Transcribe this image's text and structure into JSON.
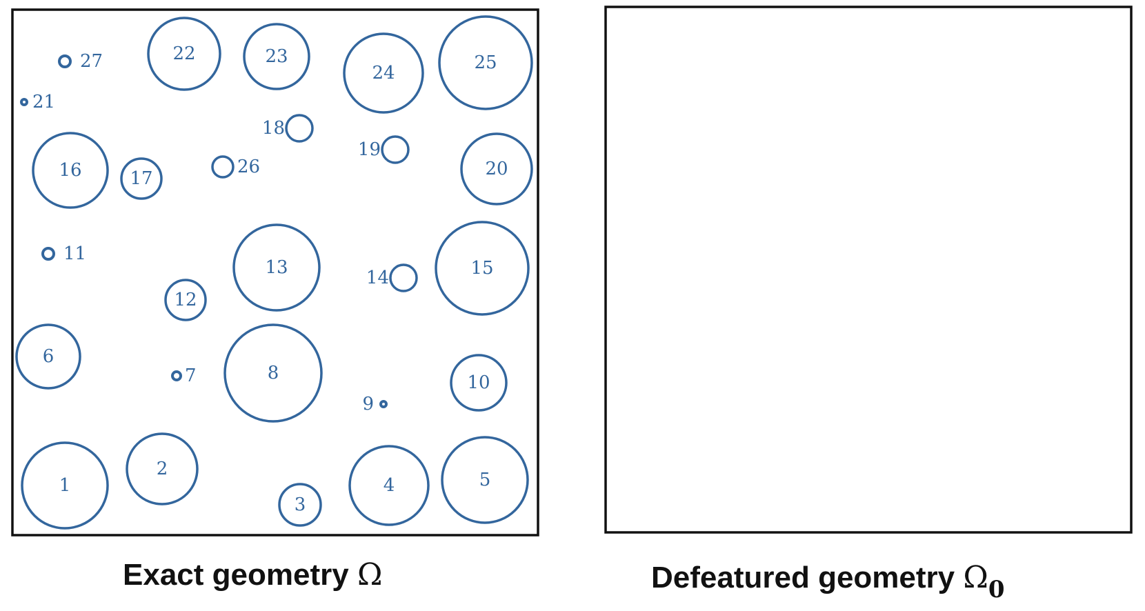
{
  "colors": {
    "hole_stroke": "#33669d",
    "label": "#33669d",
    "border": "#111111"
  },
  "panels": {
    "exact": {
      "caption_text": "Exact geometry",
      "caption_symbol": "Ω"
    },
    "defeatured": {
      "caption_text": "Defeatured geometry",
      "caption_symbol": "Ω",
      "caption_subscript": "0"
    }
  },
  "holes": [
    {
      "id": "1"
    },
    {
      "id": "2"
    },
    {
      "id": "3"
    },
    {
      "id": "4"
    },
    {
      "id": "5"
    },
    {
      "id": "6"
    },
    {
      "id": "7"
    },
    {
      "id": "8"
    },
    {
      "id": "9"
    },
    {
      "id": "10"
    },
    {
      "id": "11"
    },
    {
      "id": "12"
    },
    {
      "id": "13"
    },
    {
      "id": "14"
    },
    {
      "id": "15"
    },
    {
      "id": "16"
    },
    {
      "id": "17"
    },
    {
      "id": "18"
    },
    {
      "id": "19"
    },
    {
      "id": "20"
    },
    {
      "id": "21"
    },
    {
      "id": "22"
    },
    {
      "id": "23"
    },
    {
      "id": "24"
    },
    {
      "id": "25"
    },
    {
      "id": "26"
    },
    {
      "id": "27"
    }
  ]
}
